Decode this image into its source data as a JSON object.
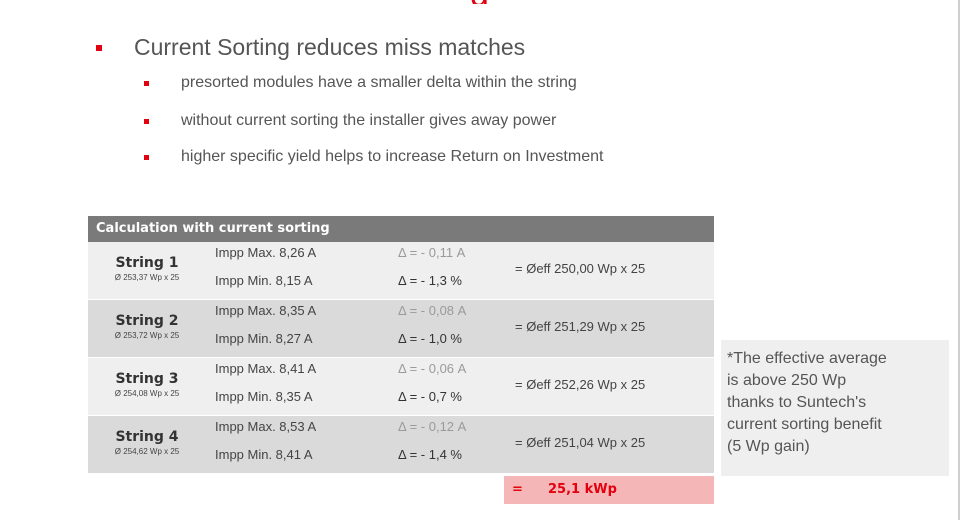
{
  "title_fragment": "g",
  "main_bullet": "Current Sorting reduces miss matches",
  "sub_bullets": [
    "presorted modules have a smaller delta within the string",
    "without current sorting the installer gives away power",
    "higher specific yield helps to increase Return on Investment"
  ],
  "table": {
    "header": "Calculation with current sorting",
    "rows": [
      {
        "name": "String 1",
        "sub": "Ø 253,37 Wp x 25",
        "imax": "Impp Max. 8,26 A",
        "imin": "Impp Min.  8,15 A",
        "delta_a": "Δ  = - 0,11 A",
        "delta_p": "Δ  = - 1,3 %",
        "eff": "=  Øeff 250,00 Wp x 25"
      },
      {
        "name": "String  2",
        "sub": "Ø 253,72 Wp x 25",
        "imax": "Impp Max. 8,35 A",
        "imin": "Impp Min.  8,27 A",
        "delta_a": "Δ  = - 0,08 A",
        "delta_p": "Δ  = - 1,0 %",
        "eff": "=  Øeff 251,29 Wp x 25"
      },
      {
        "name": "String 3",
        "sub": "Ø 254,08 Wp x 25",
        "imax": "Impp Max. 8,41 A",
        "imin": "Impp Min.  8,35 A",
        "delta_a": "Δ  = - 0,06 A",
        "delta_p": "Δ  = - 0,7 %",
        "eff": "=  Øeff 252,26 Wp x 25"
      },
      {
        "name": "String 4",
        "sub": "Ø 254,62 Wp x 25",
        "imax": "Impp Max. 8,53 A",
        "imin": "Impp Min.  8,41 A",
        "delta_a": "Δ  = - 0,12 A",
        "delta_p": "Δ  = - 1,4 %",
        "eff": "=  Øeff 251,04 Wp x 25"
      }
    ],
    "total_eq": "=",
    "total_value": "25,1 kWp"
  },
  "note_lines": [
    "*The effective average",
    "is above 250 Wp",
    "thanks to Suntech's",
    "current sorting benefit",
    "(5 Wp gain)"
  ],
  "colors": {
    "accent": "#e3000f",
    "header": "#7a7a7a",
    "total_bg": "#f4b6b6"
  }
}
